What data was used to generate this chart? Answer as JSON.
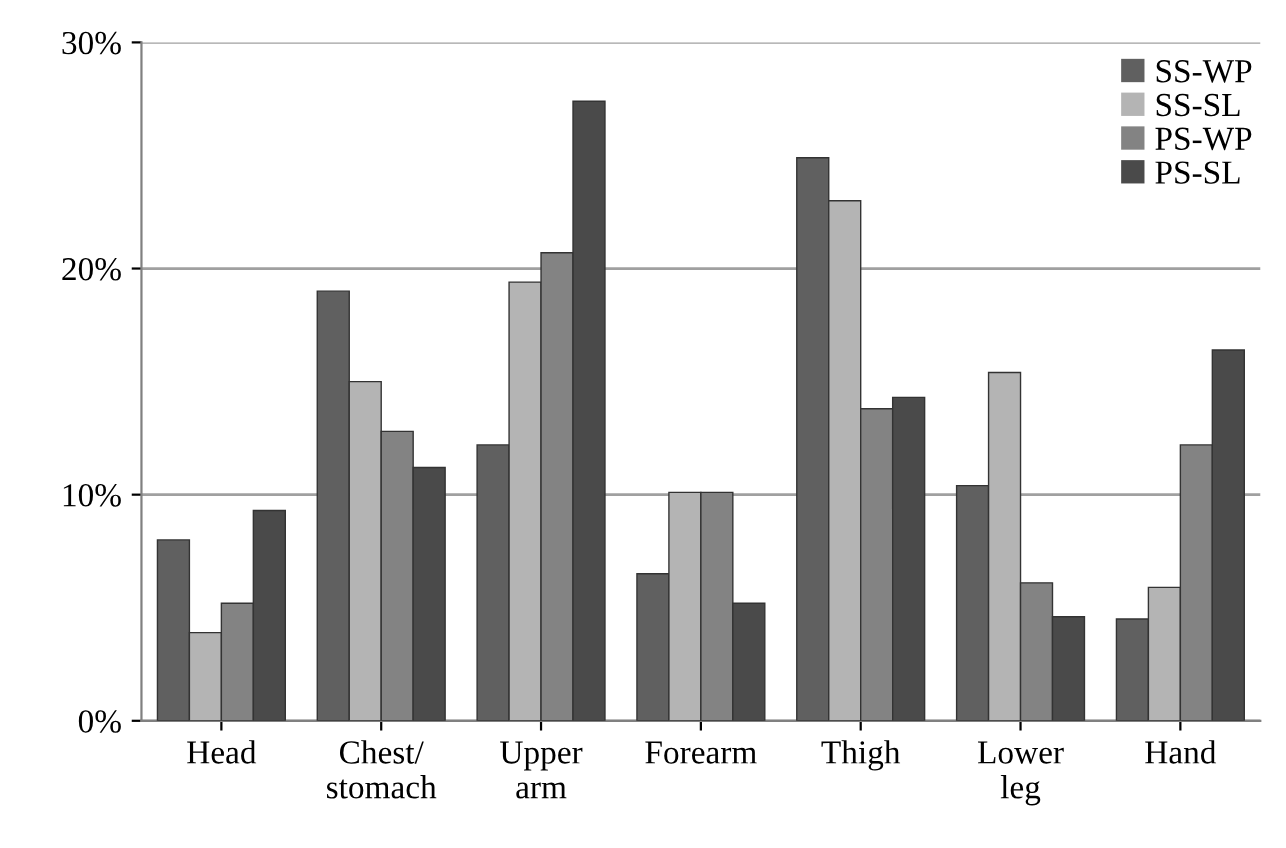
{
  "chart_data": {
    "type": "bar",
    "categories": [
      "Head",
      "Chest/\nstomach",
      "Upper\narm",
      "Forearm",
      "Thigh",
      "Lower\nleg",
      "Hand"
    ],
    "series": [
      {
        "name": "SS-WP",
        "color": "#606060",
        "values": [
          8.0,
          19.0,
          12.2,
          6.5,
          24.9,
          10.4,
          4.5
        ]
      },
      {
        "name": "SS-SL",
        "color": "#b4b4b4",
        "values": [
          3.9,
          15.0,
          19.4,
          10.1,
          23.0,
          15.4,
          5.9
        ]
      },
      {
        "name": "PS-WP",
        "color": "#838383",
        "values": [
          5.2,
          12.8,
          20.7,
          10.1,
          13.8,
          6.1,
          12.2
        ]
      },
      {
        "name": "PS-SL",
        "color": "#4a4a4a",
        "values": [
          9.3,
          11.2,
          27.4,
          5.2,
          14.3,
          4.6,
          16.4
        ]
      }
    ],
    "ylim": [
      0,
      30
    ],
    "yticks": [
      {
        "value": 0,
        "label": "0%"
      },
      {
        "value": 10,
        "label": "10%"
      },
      {
        "value": 20,
        "label": "20%"
      },
      {
        "value": 30,
        "label": "30%"
      }
    ],
    "grid": "y",
    "legend": "top right"
  }
}
